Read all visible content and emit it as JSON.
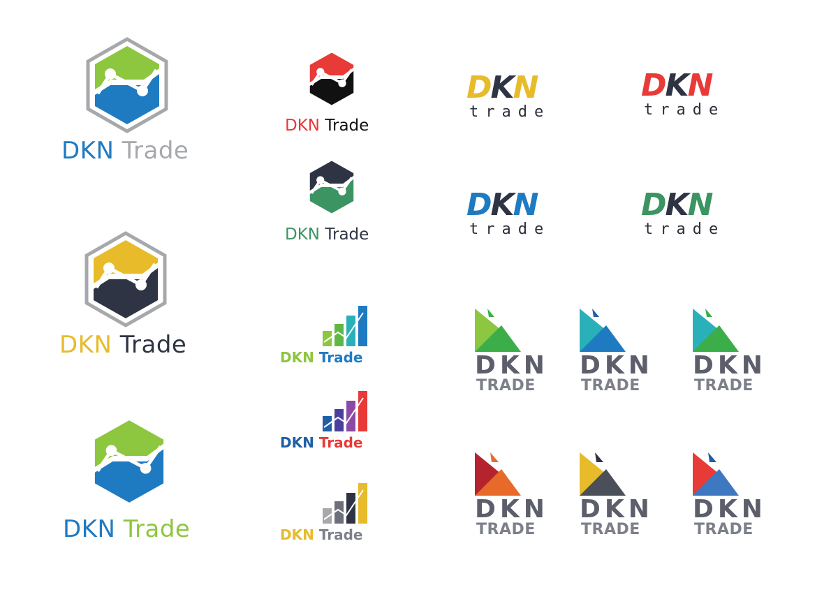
{
  "hex_large": [
    {
      "dkn": "DKN",
      "trade": "Trade",
      "top_color": "#8dc63f",
      "bottom_color": "#1f7bc1",
      "outline": true,
      "dkn_color": "#1f7bc1",
      "trade_color": "#a6a8ab"
    },
    {
      "dkn": "DKN",
      "trade": "Trade",
      "top_color": "#e7bb2a",
      "bottom_color": "#2e3443",
      "outline": true,
      "dkn_color": "#e7bb2a",
      "trade_color": "#2e3443"
    },
    {
      "dkn": "DKN",
      "trade": "Trade",
      "top_color": "#8dc63f",
      "bottom_color": "#1f7bc1",
      "outline": false,
      "dkn_color": "#1f7bc1",
      "trade_color": "#8dc63f"
    }
  ],
  "hex_small": [
    {
      "dkn": "DKN",
      "trade": "Trade",
      "top_color": "#e83a37",
      "bottom_color": "#111111",
      "dkn_color": "#e83a37",
      "trade_color": "#111111"
    },
    {
      "dkn": "DKN",
      "trade": "Trade",
      "top_color": "#2e3443",
      "bottom_color": "#3b9462",
      "dkn_color": "#3b9462",
      "trade_color": "#2e3443"
    }
  ],
  "bar_logos": [
    {
      "dkn": "DKN",
      "trade": "Trade",
      "dkn_color": "#8dc63f",
      "trade_color": "#1f7bc1",
      "bar_colors": [
        "#8dc63f",
        "#5fb846",
        "#2ab0b8",
        "#1f7bc1"
      ]
    },
    {
      "dkn": "DKN",
      "trade": "Trade",
      "dkn_color": "#1f5fa6",
      "trade_color": "#e83a37",
      "bar_colors": [
        "#1f5fa6",
        "#4a3f9c",
        "#8a4aa5",
        "#e83a37"
      ]
    },
    {
      "dkn": "DKN",
      "trade": "Trade",
      "dkn_color": "#e7bb2a",
      "trade_color": "#7d808a",
      "bar_colors": [
        "#a6a8ab",
        "#6d707a",
        "#2e3443",
        "#e7bb2a"
      ]
    }
  ],
  "dkn_word": [
    {
      "dkn": "DKN",
      "sub": "trade",
      "c1": "#e7bb2a",
      "c2": "#2e3443",
      "c3": "#e7bb2a"
    },
    {
      "dkn": "DKN",
      "sub": "trade",
      "c1": "#e83a37",
      "c2": "#2e3443",
      "c3": "#e83a37"
    },
    {
      "dkn": "DKN",
      "sub": "trade",
      "c1": "#1f7bc1",
      "c2": "#2e3443",
      "c3": "#1f7bc1"
    },
    {
      "dkn": "DKN",
      "sub": "trade",
      "c1": "#3b9462",
      "c2": "#2e3443",
      "c3": "#3b9462"
    }
  ],
  "triangle_logos": [
    {
      "dkn": "DKN",
      "trade": "TRADE",
      "small": "#3bae4a",
      "upper": "#8dc63f",
      "lower": "#3bae4a"
    },
    {
      "dkn": "DKN",
      "trade": "TRADE",
      "small": "#1f5fa6",
      "upper": "#2ab0b8",
      "lower": "#1f7bc1"
    },
    {
      "dkn": "DKN",
      "trade": "TRADE",
      "small": "#3bae4a",
      "upper": "#2ab0b8",
      "lower": "#3bae4a"
    },
    {
      "dkn": "DKN",
      "trade": "TRADE",
      "small": "#e86a2a",
      "upper": "#b5232f",
      "lower": "#e86a2a"
    },
    {
      "dkn": "DKN",
      "trade": "TRADE",
      "small": "#2e3443",
      "upper": "#e7bb2a",
      "lower": "#4b4f59"
    },
    {
      "dkn": "DKN",
      "trade": "TRADE",
      "small": "#1f5fa6",
      "upper": "#e83a37",
      "lower": "#3d78c0"
    }
  ]
}
